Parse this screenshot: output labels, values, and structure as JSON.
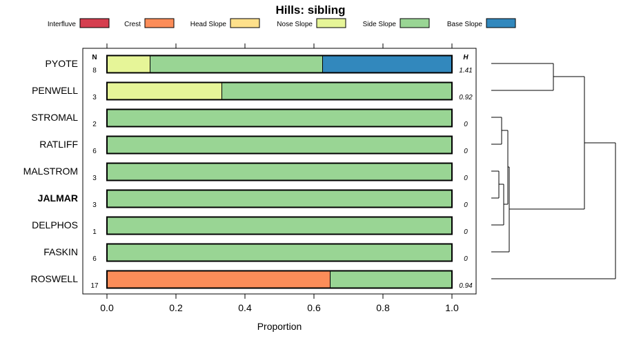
{
  "chart_data": {
    "type": "bar",
    "orientation": "horizontal-stacked",
    "title": "Hills: sibling",
    "xlabel": "Proportion",
    "xlim": [
      0,
      1
    ],
    "x_ticks": [
      "0.0",
      "0.2",
      "0.4",
      "0.6",
      "0.8",
      "1.0"
    ],
    "n_header": "N",
    "h_header": "H",
    "legend": [
      {
        "name": "Interfluve",
        "color": "#d53e4f"
      },
      {
        "name": "Crest",
        "color": "#fc8d59"
      },
      {
        "name": "Head Slope",
        "color": "#fee08b"
      },
      {
        "name": "Nose Slope",
        "color": "#e6f598"
      },
      {
        "name": "Side Slope",
        "color": "#99d594"
      },
      {
        "name": "Base Slope",
        "color": "#3288bd"
      }
    ],
    "rows": [
      {
        "label": "PYOTE",
        "n": "8",
        "h": "1.41",
        "bold": false,
        "values": [
          0,
          0,
          0,
          0.125,
          0.5,
          0.375
        ]
      },
      {
        "label": "PENWELL",
        "n": "3",
        "h": "0.92",
        "bold": false,
        "values": [
          0,
          0,
          0,
          0.333,
          0.667,
          0
        ]
      },
      {
        "label": "STROMAL",
        "n": "2",
        "h": "0",
        "bold": false,
        "values": [
          0,
          0,
          0,
          0,
          1.0,
          0
        ]
      },
      {
        "label": "RATLIFF",
        "n": "6",
        "h": "0",
        "bold": false,
        "values": [
          0,
          0,
          0,
          0,
          1.0,
          0
        ]
      },
      {
        "label": "MALSTROM",
        "n": "3",
        "h": "0",
        "bold": false,
        "values": [
          0,
          0,
          0,
          0,
          1.0,
          0
        ]
      },
      {
        "label": "JALMAR",
        "n": "3",
        "h": "0",
        "bold": true,
        "values": [
          0,
          0,
          0,
          0,
          1.0,
          0
        ]
      },
      {
        "label": "DELPHOS",
        "n": "1",
        "h": "0",
        "bold": false,
        "values": [
          0,
          0,
          0,
          0,
          1.0,
          0
        ]
      },
      {
        "label": "FASKIN",
        "n": "6",
        "h": "0",
        "bold": false,
        "values": [
          0,
          0,
          0,
          0,
          1.0,
          0
        ]
      },
      {
        "label": "ROSWELL",
        "n": "17",
        "h": "0.94",
        "bold": false,
        "values": [
          0,
          0.647,
          0,
          0,
          0.353,
          0
        ]
      }
    ]
  }
}
